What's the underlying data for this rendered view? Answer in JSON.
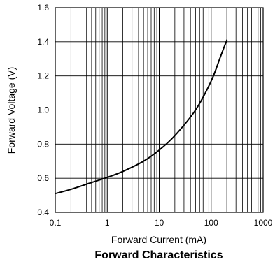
{
  "chart_data": {
    "type": "line",
    "title": "Forward Characteristics",
    "xlabel": "Forward Current (mA)",
    "ylabel": "Forward Voltage (V)",
    "x_scale": "log",
    "xlim": [
      0.1,
      1000
    ],
    "ylim": [
      0.4,
      1.6
    ],
    "x_ticks": [
      0.1,
      1,
      10,
      100,
      1000
    ],
    "x_tick_labels": [
      "0.1",
      "1",
      "10",
      "100",
      "1000"
    ],
    "y_ticks": [
      0.4,
      0.6,
      0.8,
      1.0,
      1.2,
      1.4,
      1.6
    ],
    "y_tick_labels": [
      "0.4",
      "0.6",
      "0.8",
      "1.0",
      "1.2",
      "1.4",
      "1.6"
    ],
    "grid": true,
    "legend": "none",
    "series": [
      {
        "color": "#000000",
        "x": [
          0.1,
          0.2,
          0.5,
          1,
          2,
          5,
          10,
          20,
          50,
          100,
          150,
          200
        ],
        "y": [
          0.51,
          0.535,
          0.575,
          0.605,
          0.64,
          0.7,
          0.765,
          0.85,
          1.0,
          1.17,
          1.31,
          1.41
        ]
      }
    ]
  }
}
